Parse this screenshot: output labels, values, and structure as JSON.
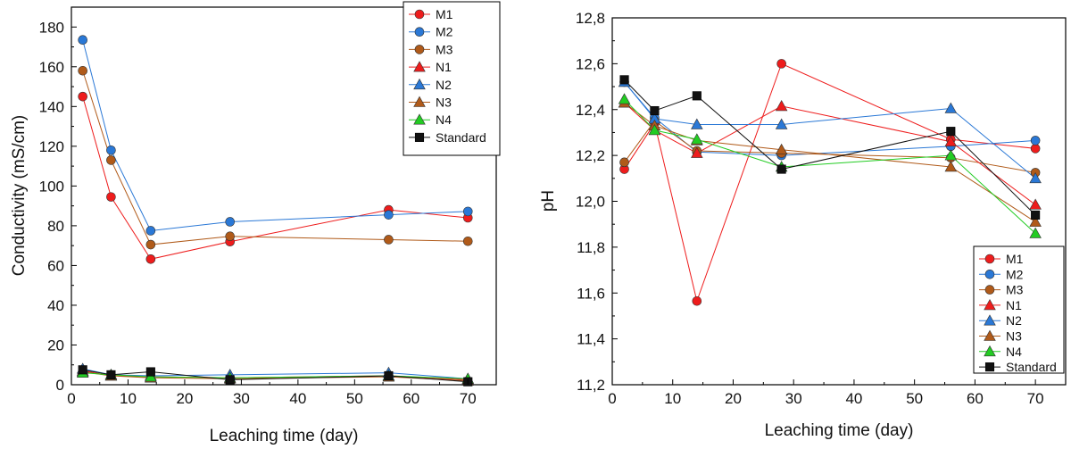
{
  "chart_data": [
    {
      "type": "line",
      "xlabel": "Leaching time (day)",
      "ylabel": "Conductivity (mS/cm)",
      "xlim": [
        0,
        75
      ],
      "ylim": [
        0,
        190
      ],
      "xticks": [
        "0",
        "10",
        "20",
        "30",
        "40",
        "50",
        "60",
        "70"
      ],
      "yticks": [
        "0",
        "20",
        "40",
        "60",
        "80",
        "100",
        "120",
        "140",
        "160",
        "180"
      ],
      "legend": "top-right",
      "series": [
        {
          "name": "M1",
          "marker": "circle",
          "color": "#ee1c1c",
          "x": [
            2,
            7,
            14,
            28,
            56,
            70
          ],
          "y": [
            145,
            94.5,
            63.2,
            72,
            88,
            84
          ]
        },
        {
          "name": "M2",
          "marker": "circle",
          "color": "#2a78d6",
          "x": [
            2,
            7,
            14,
            28,
            56,
            70
          ],
          "y": [
            173.5,
            118,
            77.5,
            82,
            85.5,
            87.2
          ]
        },
        {
          "name": "M3",
          "marker": "circle",
          "color": "#b05a19",
          "x": [
            2,
            7,
            14,
            28,
            56,
            70
          ],
          "y": [
            158,
            113,
            70.5,
            74.7,
            73,
            72.2
          ]
        },
        {
          "name": "N1",
          "marker": "triangle",
          "color": "#ee1c1c",
          "x": [
            2,
            7,
            14,
            28,
            56,
            70
          ],
          "y": [
            7,
            4.5,
            4,
            3.5,
            4.5,
            2.5
          ]
        },
        {
          "name": "N2",
          "marker": "triangle",
          "color": "#2a78d6",
          "x": [
            2,
            7,
            14,
            28,
            56,
            70
          ],
          "y": [
            8,
            5,
            4.5,
            5,
            6,
            3
          ]
        },
        {
          "name": "N3",
          "marker": "triangle",
          "color": "#b05a19",
          "x": [
            2,
            7,
            14,
            28,
            56,
            70
          ],
          "y": [
            6.5,
            4.5,
            3.5,
            3,
            4,
            2
          ]
        },
        {
          "name": "N4",
          "marker": "triangle",
          "color": "#22cc22",
          "x": [
            2,
            7,
            14,
            28,
            56,
            70
          ],
          "y": [
            6,
            5,
            4,
            3.5,
            4.5,
            3
          ]
        },
        {
          "name": "Standard",
          "marker": "square",
          "color": "#111111",
          "x": [
            2,
            7,
            14,
            28,
            56,
            70
          ],
          "y": [
            7.5,
            5,
            6.5,
            2.5,
            4.5,
            1.5
          ]
        }
      ]
    },
    {
      "type": "line",
      "xlabel": "Leaching time (day)",
      "ylabel": "pH",
      "xlim": [
        0,
        75
      ],
      "ylim": [
        11.2,
        12.8
      ],
      "xticks": [
        "0",
        "10",
        "20",
        "30",
        "40",
        "50",
        "60",
        "70"
      ],
      "yticks": [
        "11,2",
        "11,4",
        "11,6",
        "11,8",
        "12,0",
        "12,2",
        "12,4",
        "12,6",
        "12,8"
      ],
      "legend": "bottom-right",
      "series": [
        {
          "name": "M1",
          "marker": "circle",
          "color": "#ee1c1c",
          "x": [
            2,
            7,
            14,
            28,
            56,
            70
          ],
          "y": [
            12.14,
            12.34,
            11.565,
            12.6,
            12.27,
            12.23
          ]
        },
        {
          "name": "M2",
          "marker": "circle",
          "color": "#2a78d6",
          "x": [
            2,
            7,
            14,
            28,
            56,
            70
          ],
          "y": [
            12.52,
            12.365,
            12.215,
            12.2,
            12.24,
            12.265
          ]
        },
        {
          "name": "M3",
          "marker": "circle",
          "color": "#b05a19",
          "x": [
            2,
            7,
            14,
            28,
            56,
            70
          ],
          "y": [
            12.17,
            12.35,
            12.22,
            12.21,
            12.19,
            12.125
          ]
        },
        {
          "name": "N1",
          "marker": "triangle",
          "color": "#ee1c1c",
          "x": [
            2,
            7,
            14,
            28,
            56,
            70
          ],
          "y": [
            12.43,
            12.31,
            12.21,
            12.415,
            12.26,
            11.985
          ]
        },
        {
          "name": "N2",
          "marker": "triangle",
          "color": "#2a78d6",
          "x": [
            2,
            7,
            14,
            28,
            56,
            70
          ],
          "y": [
            12.52,
            12.36,
            12.335,
            12.335,
            12.405,
            12.1
          ]
        },
        {
          "name": "N3",
          "marker": "triangle",
          "color": "#b05a19",
          "x": [
            2,
            7,
            14,
            28,
            56,
            70
          ],
          "y": [
            12.43,
            12.33,
            12.265,
            12.225,
            12.15,
            11.91
          ]
        },
        {
          "name": "N4",
          "marker": "triangle",
          "color": "#22cc22",
          "x": [
            2,
            7,
            14,
            28,
            56,
            70
          ],
          "y": [
            12.445,
            12.31,
            12.27,
            12.15,
            12.2,
            11.86
          ]
        },
        {
          "name": "Standard",
          "marker": "square",
          "color": "#111111",
          "x": [
            2,
            7,
            14,
            28,
            56,
            70
          ],
          "y": [
            12.53,
            12.395,
            12.46,
            12.14,
            12.305,
            11.94
          ]
        }
      ]
    }
  ]
}
